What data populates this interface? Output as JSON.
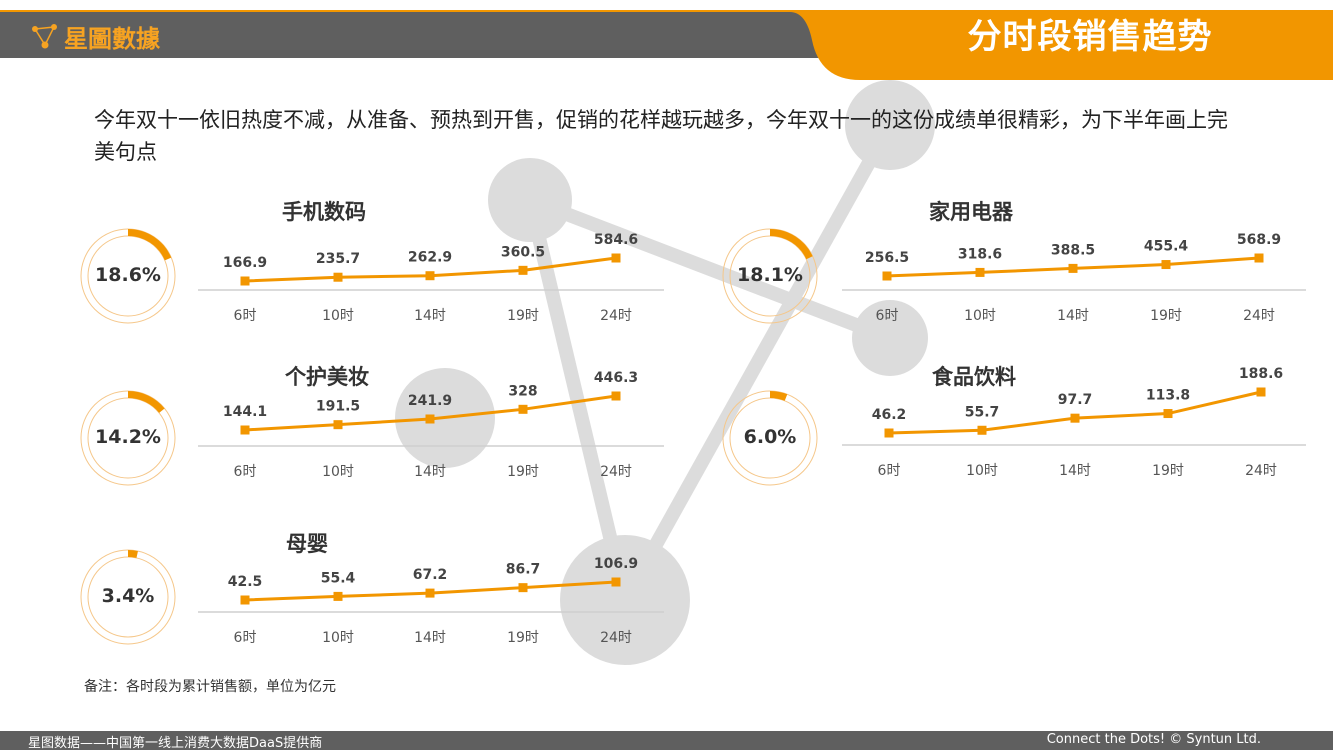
{
  "header": {
    "brand": "星圖數據",
    "title": "分时段销售趋势"
  },
  "intro": "今年双十一依旧热度不减，从准备、预热到开售，促销的花样越玩越多，今年双十一的这份成绩单很精彩，为下半年画上完美句点",
  "colors": {
    "accent": "#f29600",
    "header_gray": "#5f5f5f",
    "deco_gray": "#d9d9d9"
  },
  "chart_data": [
    {
      "type": "line",
      "title": "手机数码",
      "share": "18.6%",
      "share_value": 18.6,
      "categories": [
        "6时",
        "10时",
        "14时",
        "19时",
        "24时"
      ],
      "values": [
        166.9,
        235.7,
        262.9,
        360.5,
        584.6
      ]
    },
    {
      "type": "line",
      "title": "个护美妆",
      "share": "14.2%",
      "share_value": 14.2,
      "categories": [
        "6时",
        "10时",
        "14时",
        "19时",
        "24时"
      ],
      "values": [
        144.1,
        191.5,
        241.9,
        328.0,
        446.3
      ]
    },
    {
      "type": "line",
      "title": "母婴",
      "share": "3.4%",
      "share_value": 3.4,
      "categories": [
        "6时",
        "10时",
        "14时",
        "19时",
        "24时"
      ],
      "values": [
        42.5,
        55.4,
        67.2,
        86.7,
        106.9
      ]
    },
    {
      "type": "line",
      "title": "家用电器",
      "share": "18.1%",
      "share_value": 18.1,
      "categories": [
        "6时",
        "10时",
        "14时",
        "19时",
        "24时"
      ],
      "values": [
        256.5,
        318.6,
        388.5,
        455.4,
        568.9
      ]
    },
    {
      "type": "line",
      "title": "食品饮料",
      "share": "6.0%",
      "share_value": 6.0,
      "categories": [
        "6时",
        "10时",
        "14时",
        "19时",
        "24时"
      ],
      "values": [
        46.2,
        55.7,
        97.7,
        113.8,
        188.6
      ]
    }
  ],
  "note": "备注：各时段为累计销售额，单位为亿元",
  "footer": {
    "left": "星图数据——中国第一线上消费大数据DaaS提供商",
    "right": "Connect the Dots! © Syntun Ltd."
  }
}
